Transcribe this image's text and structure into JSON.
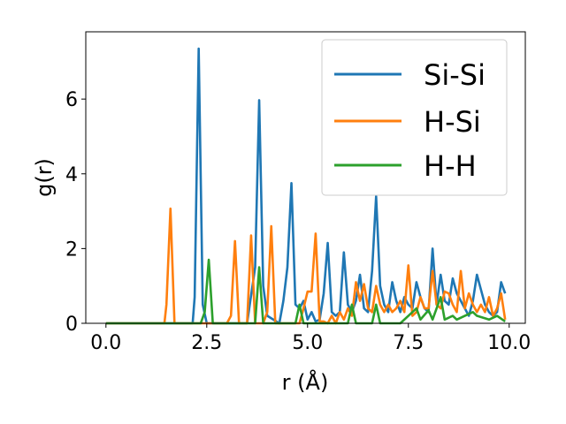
{
  "chart_data": {
    "type": "line",
    "xlabel": "r (Å)",
    "ylabel": "g(r)",
    "xlim": [
      -0.5,
      10.4
    ],
    "ylim": [
      0,
      7.8
    ],
    "xticks": [
      0.0,
      2.5,
      5.0,
      7.5,
      10.0
    ],
    "xtick_labels": [
      "0.0",
      "2.5",
      "5.0",
      "7.5",
      "10.0"
    ],
    "yticks": [
      0,
      2,
      4,
      6
    ],
    "ytick_labels": [
      "0",
      "2",
      "4",
      "6"
    ],
    "grid": false,
    "legend_position": "upper right",
    "series": [
      {
        "name": "Si-Si",
        "color": "#1f77b4",
        "points": [
          [
            0.0,
            0
          ],
          [
            2.15,
            0
          ],
          [
            2.2,
            0.7
          ],
          [
            2.3,
            7.35
          ],
          [
            2.4,
            0.5
          ],
          [
            2.5,
            0
          ],
          [
            3.5,
            0
          ],
          [
            3.7,
            1.5
          ],
          [
            3.8,
            5.97
          ],
          [
            3.9,
            1.0
          ],
          [
            4.0,
            0.2
          ],
          [
            4.3,
            0
          ],
          [
            4.4,
            0.6
          ],
          [
            4.5,
            1.5
          ],
          [
            4.6,
            3.75
          ],
          [
            4.7,
            0.5
          ],
          [
            4.8,
            0.4
          ],
          [
            4.9,
            0.6
          ],
          [
            5.0,
            0.1
          ],
          [
            5.1,
            0.3
          ],
          [
            5.2,
            0.05
          ],
          [
            5.3,
            0.1
          ],
          [
            5.4,
            0.8
          ],
          [
            5.5,
            2.15
          ],
          [
            5.6,
            0.3
          ],
          [
            5.7,
            0.2
          ],
          [
            5.8,
            0.3
          ],
          [
            5.9,
            1.9
          ],
          [
            6.0,
            0.5
          ],
          [
            6.1,
            0.3
          ],
          [
            6.2,
            0.6
          ],
          [
            6.3,
            1.3
          ],
          [
            6.4,
            0.4
          ],
          [
            6.5,
            0.3
          ],
          [
            6.6,
            1.4
          ],
          [
            6.7,
            3.4
          ],
          [
            6.8,
            1.0
          ],
          [
            6.9,
            0.5
          ],
          [
            7.0,
            0.3
          ],
          [
            7.1,
            1.1
          ],
          [
            7.2,
            0.6
          ],
          [
            7.3,
            0.3
          ],
          [
            7.4,
            0.7
          ],
          [
            7.5,
            0.5
          ],
          [
            7.6,
            0.4
          ],
          [
            7.7,
            1.1
          ],
          [
            7.8,
            0.7
          ],
          [
            7.9,
            0.4
          ],
          [
            8.0,
            0.3
          ],
          [
            8.1,
            2.0
          ],
          [
            8.2,
            0.5
          ],
          [
            8.3,
            1.3
          ],
          [
            8.4,
            0.6
          ],
          [
            8.5,
            0.5
          ],
          [
            8.6,
            1.2
          ],
          [
            8.7,
            0.8
          ],
          [
            8.8,
            0.6
          ],
          [
            8.9,
            0.4
          ],
          [
            9.0,
            0.2
          ],
          [
            9.1,
            0.6
          ],
          [
            9.2,
            1.3
          ],
          [
            9.3,
            0.9
          ],
          [
            9.4,
            0.5
          ],
          [
            9.5,
            0.3
          ],
          [
            9.6,
            0.2
          ],
          [
            9.7,
            0.3
          ],
          [
            9.8,
            1.1
          ],
          [
            9.9,
            0.8
          ]
        ]
      },
      {
        "name": "H-Si",
        "color": "#ff7f0e",
        "points": [
          [
            0.0,
            0
          ],
          [
            1.45,
            0
          ],
          [
            1.5,
            0.5
          ],
          [
            1.6,
            3.07
          ],
          [
            1.7,
            0
          ],
          [
            3.0,
            0
          ],
          [
            3.1,
            0.2
          ],
          [
            3.2,
            2.2
          ],
          [
            3.3,
            0
          ],
          [
            3.5,
            0
          ],
          [
            3.6,
            2.35
          ],
          [
            3.7,
            0
          ],
          [
            3.9,
            0
          ],
          [
            4.0,
            0.3
          ],
          [
            4.1,
            2.6
          ],
          [
            4.2,
            0
          ],
          [
            4.8,
            0
          ],
          [
            4.9,
            0.4
          ],
          [
            5.0,
            0.85
          ],
          [
            5.1,
            0.85
          ],
          [
            5.2,
            2.4
          ],
          [
            5.3,
            0.05
          ],
          [
            5.4,
            0.05
          ],
          [
            5.5,
            0
          ],
          [
            5.6,
            0.2
          ],
          [
            5.7,
            0
          ],
          [
            5.8,
            0.3
          ],
          [
            5.9,
            0.1
          ],
          [
            6.0,
            0.4
          ],
          [
            6.1,
            0.2
          ],
          [
            6.2,
            1.1
          ],
          [
            6.3,
            0.6
          ],
          [
            6.4,
            1.05
          ],
          [
            6.5,
            0.4
          ],
          [
            6.6,
            0.3
          ],
          [
            6.7,
            1.0
          ],
          [
            6.8,
            0.5
          ],
          [
            6.9,
            0.3
          ],
          [
            7.0,
            0.5
          ],
          [
            7.1,
            0.3
          ],
          [
            7.2,
            0.4
          ],
          [
            7.3,
            0.6
          ],
          [
            7.4,
            0.3
          ],
          [
            7.5,
            1.55
          ],
          [
            7.6,
            0.2
          ],
          [
            7.7,
            0.3
          ],
          [
            7.8,
            0.7
          ],
          [
            7.9,
            0.4
          ],
          [
            8.0,
            0.4
          ],
          [
            8.1,
            1.4
          ],
          [
            8.2,
            0.5
          ],
          [
            8.3,
            0.4
          ],
          [
            8.4,
            0.85
          ],
          [
            8.5,
            0.8
          ],
          [
            8.6,
            0.5
          ],
          [
            8.7,
            0.3
          ],
          [
            8.8,
            1.4
          ],
          [
            8.9,
            0.4
          ],
          [
            9.0,
            0.8
          ],
          [
            9.1,
            0.5
          ],
          [
            9.2,
            0.3
          ],
          [
            9.3,
            0.5
          ],
          [
            9.4,
            0.3
          ],
          [
            9.5,
            0.7
          ],
          [
            9.6,
            0.2
          ],
          [
            9.7,
            0.4
          ],
          [
            9.8,
            0.8
          ],
          [
            9.9,
            0.1
          ]
        ]
      },
      {
        "name": "H-H",
        "color": "#2ca02c",
        "points": [
          [
            0.0,
            0
          ],
          [
            2.35,
            0
          ],
          [
            2.45,
            0.3
          ],
          [
            2.55,
            1.7
          ],
          [
            2.65,
            0
          ],
          [
            3.7,
            0
          ],
          [
            3.8,
            1.5
          ],
          [
            3.9,
            0
          ],
          [
            4.7,
            0
          ],
          [
            4.8,
            0.5
          ],
          [
            4.9,
            0
          ],
          [
            6.0,
            0
          ],
          [
            6.1,
            0.5
          ],
          [
            6.2,
            0
          ],
          [
            6.6,
            0
          ],
          [
            6.7,
            0.5
          ],
          [
            6.8,
            0
          ],
          [
            7.3,
            0
          ],
          [
            7.5,
            0.2
          ],
          [
            7.7,
            0.4
          ],
          [
            7.8,
            0.1
          ],
          [
            8.0,
            0.35
          ],
          [
            8.1,
            0.1
          ],
          [
            8.3,
            0.7
          ],
          [
            8.4,
            0.1
          ],
          [
            8.6,
            0.2
          ],
          [
            8.7,
            0.1
          ],
          [
            9.1,
            0.3
          ],
          [
            9.2,
            0.2
          ],
          [
            9.5,
            0.1
          ],
          [
            9.7,
            0.2
          ],
          [
            9.9,
            0.05
          ]
        ]
      }
    ]
  }
}
